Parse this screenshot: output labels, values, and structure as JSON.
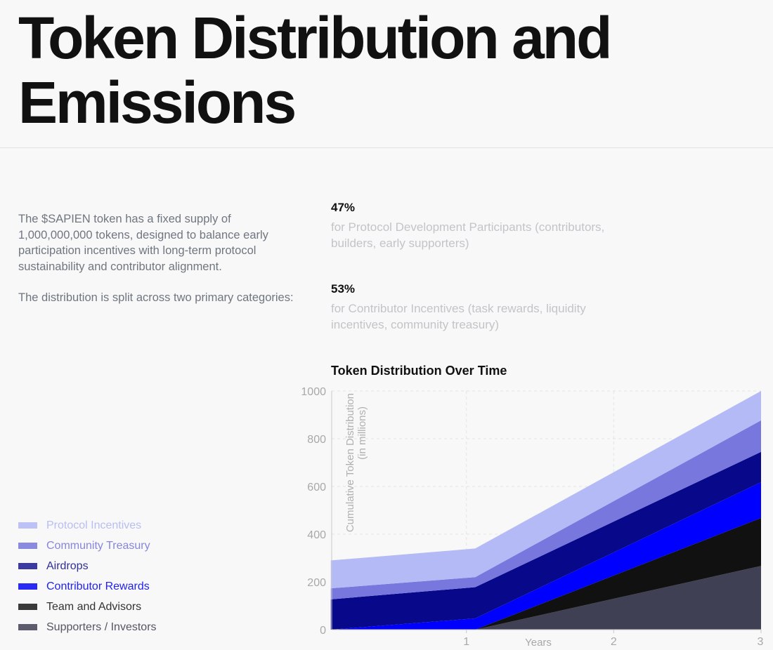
{
  "title": "Token Distribution and Emissions",
  "intro": [
    "The $SAPIEN token has a fixed supply of 1,000,000,000 tokens, designed to balance early participation incentives with long-term protocol sustainability and contributor alignment.",
    "The distribution is split across two primary categories:"
  ],
  "stats": [
    {
      "pct": "47%",
      "desc": "for Protocol Development Participants (contributors, builders, early supporters)"
    },
    {
      "pct": "53%",
      "desc": "for Contributor Incentives (task rewards, liquidity incentives, community treasury)"
    }
  ],
  "legend": [
    {
      "label": "Protocol Incentives",
      "swatch": "#bcc2f5",
      "text": "#b8bef2"
    },
    {
      "label": "Community Treasury",
      "swatch": "#8a8ae0",
      "text": "#8686dc"
    },
    {
      "label": "Airdrops",
      "swatch": "#3a3aa0",
      "text": "#2e2e96"
    },
    {
      "label": "Contributor Rewards",
      "swatch": "#2a2af5",
      "text": "#2222ee"
    },
    {
      "label": "Team and Advisors",
      "swatch": "#3a3a3a",
      "text": "#333333"
    },
    {
      "label": "Supporters / Investors",
      "swatch": "#5c5c6e",
      "text": "#555566"
    }
  ],
  "chart_data": {
    "type": "area",
    "stacked": true,
    "title": "Token Distribution Over Time",
    "xlabel": "Years",
    "ylabel": "Cumulative Token Distribution (in millions)",
    "xlim": [
      0,
      3
    ],
    "ylim": [
      0,
      1000
    ],
    "xticks": [
      1,
      2,
      3
    ],
    "yticks": [
      0,
      200,
      400,
      600,
      800,
      1000
    ],
    "grid": true,
    "x": [
      0.08,
      1.06,
      3
    ],
    "series": [
      {
        "name": "Supporters / Investors",
        "color": "#404055",
        "values": [
          0,
          0,
          267
        ]
      },
      {
        "name": "Team and Advisors",
        "color": "#111111",
        "values": [
          0,
          0,
          201
        ]
      },
      {
        "name": "Contributor Rewards",
        "color": "#0000ff",
        "values": [
          0,
          47,
          150
        ]
      },
      {
        "name": "Airdrops",
        "color": "#08088a",
        "values": [
          127,
          131,
          127
        ]
      },
      {
        "name": "Community Treasury",
        "color": "#7777dd",
        "values": [
          46,
          42,
          132
        ]
      },
      {
        "name": "Protocol Incentives",
        "color": "#b3baf6",
        "values": [
          117,
          120,
          123
        ]
      }
    ]
  }
}
